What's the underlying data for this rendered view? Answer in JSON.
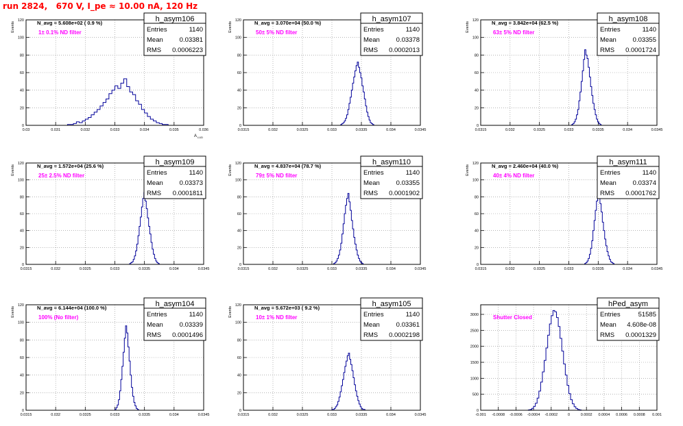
{
  "page": {
    "title": "run 2824,   670 V, I_pe ≈ 10.00 nA, 120 Hz"
  },
  "style": {
    "hist_color": "#000099",
    "note_color": "#ff00ff",
    "title_color": "#ff0000",
    "grid_color": "#888888"
  },
  "stat_labels": {
    "entries": "Entries",
    "mean": "Mean",
    "rms": "RMS"
  },
  "chart_data": [
    {
      "type": "histogram",
      "name": "h_asym106",
      "ylabel": "Events",
      "xlabel": "A_LUD",
      "stats": {
        "entries": "1140",
        "mean": "0.03381",
        "rms": "0.0006223"
      },
      "navg": "N_avg = 5.608e+02 ( 0.9 %)",
      "note": "1± 0.1% ND filter",
      "xlim": [
        0.03,
        0.036
      ],
      "ylim": [
        0,
        120
      ],
      "xticks": [
        0.03,
        0.031,
        0.032,
        0.033,
        0.034,
        0.035,
        0.036
      ],
      "yticks": [
        0,
        20,
        40,
        60,
        80,
        100,
        120
      ],
      "xtick_labels": [
        "0.03",
        "0.031",
        "0.032",
        "0.033",
        "0.034",
        "0.035",
        "0.036"
      ],
      "ytick_labels": [
        "0",
        "20",
        "40",
        "60",
        "80",
        "100",
        "120"
      ],
      "bins": {
        "start": 0.0314,
        "width": 0.0001,
        "counts": [
          1,
          1,
          2,
          4,
          3,
          5,
          7,
          9,
          12,
          15,
          18,
          22,
          26,
          30,
          36,
          40,
          45,
          42,
          48,
          53,
          44,
          38,
          35,
          28,
          24,
          18,
          14,
          10,
          7,
          5,
          3,
          2,
          1,
          1
        ]
      }
    },
    {
      "type": "histogram",
      "name": "h_asym107",
      "ylabel": "Events",
      "xlabel": "",
      "stats": {
        "entries": "1140",
        "mean": "0.03378",
        "rms": "0.0002013"
      },
      "navg": "N_avg = 3.070e+04 (50.0 %)",
      "note": "50± 5% ND filter",
      "xlim": [
        0.0315,
        0.0345
      ],
      "ylim": [
        0,
        120
      ],
      "xticks": [
        0.0315,
        0.032,
        0.0325,
        0.033,
        0.0335,
        0.034,
        0.0345
      ],
      "yticks": [
        0,
        20,
        40,
        60,
        80,
        100,
        120
      ],
      "xtick_labels": [
        "0.0315",
        "0.032",
        "0.0325",
        "0.033",
        "0.0335",
        "0.034",
        "0.0345"
      ],
      "ytick_labels": [
        "0",
        "20",
        "40",
        "60",
        "80",
        "100",
        "120"
      ],
      "bins": {
        "start": 0.03315,
        "width": 2e-05,
        "counts": [
          1,
          2,
          3,
          5,
          8,
          12,
          18,
          25,
          32,
          40,
          48,
          55,
          62,
          68,
          72,
          66,
          60,
          54,
          45,
          38,
          30,
          22,
          15,
          10,
          6,
          3,
          2,
          1
        ]
      }
    },
    {
      "type": "histogram",
      "name": "h_asym108",
      "ylabel": "Events",
      "xlabel": "",
      "stats": {
        "entries": "1140",
        "mean": "0.03355",
        "rms": "0.0001724"
      },
      "navg": "N_avg = 3.842e+04 (62.5 %)",
      "note": "63± 5% ND filter",
      "xlim": [
        0.0315,
        0.0345
      ],
      "ylim": [
        0,
        120
      ],
      "xticks": [
        0.0315,
        0.032,
        0.0325,
        0.033,
        0.0335,
        0.034,
        0.0345
      ],
      "yticks": [
        0,
        20,
        40,
        60,
        80,
        100,
        120
      ],
      "xtick_labels": [
        "0.0315",
        "0.032",
        "0.0325",
        "0.033",
        "0.0335",
        "0.034",
        "0.0345"
      ],
      "ytick_labels": [
        "0",
        "20",
        "40",
        "60",
        "80",
        "100",
        "120"
      ],
      "bins": {
        "start": 0.03305,
        "width": 2e-05,
        "counts": [
          1,
          2,
          4,
          7,
          12,
          18,
          28,
          38,
          50,
          62,
          75,
          86,
          80,
          76,
          66,
          55,
          44,
          34,
          25,
          18,
          12,
          7,
          4,
          2,
          1
        ]
      }
    },
    {
      "type": "histogram",
      "name": "h_asym109",
      "ylabel": "Events",
      "xlabel": "",
      "stats": {
        "entries": "1140",
        "mean": "0.03373",
        "rms": "0.0001811"
      },
      "navg": "N_avg = 1.572e+04 (25.6 %)",
      "note": "25± 2.5% ND filter",
      "xlim": [
        0.0315,
        0.0345
      ],
      "ylim": [
        0,
        120
      ],
      "xticks": [
        0.0315,
        0.032,
        0.0325,
        0.033,
        0.0335,
        0.034,
        0.0345
      ],
      "yticks": [
        0,
        20,
        40,
        60,
        80,
        100,
        120
      ],
      "xtick_labels": [
        "0.0315",
        "0.032",
        "0.0325",
        "0.033",
        "0.0335",
        "0.034",
        "0.0345"
      ],
      "ytick_labels": [
        "0",
        "20",
        "40",
        "60",
        "80",
        "100",
        "120"
      ],
      "bins": {
        "start": 0.03325,
        "width": 2e-05,
        "counts": [
          1,
          2,
          3,
          6,
          10,
          16,
          24,
          34,
          45,
          56,
          68,
          78,
          85,
          75,
          66,
          55,
          45,
          36,
          26,
          18,
          12,
          7,
          4,
          2,
          1
        ]
      }
    },
    {
      "type": "histogram",
      "name": "h_asym110",
      "ylabel": "Events",
      "xlabel": "",
      "stats": {
        "entries": "1140",
        "mean": "0.03355",
        "rms": "0.0001902"
      },
      "navg": "N_avg = 4.837e+04 (78.7 %)",
      "note": "79± 5% ND filter",
      "xlim": [
        0.0315,
        0.0345
      ],
      "ylim": [
        0,
        120
      ],
      "xticks": [
        0.0315,
        0.032,
        0.0325,
        0.033,
        0.0335,
        0.034,
        0.0345
      ],
      "yticks": [
        0,
        20,
        40,
        60,
        80,
        100,
        120
      ],
      "xtick_labels": [
        "0.0315",
        "0.032",
        "0.0325",
        "0.033",
        "0.0335",
        "0.034",
        "0.0345"
      ],
      "ytick_labels": [
        "0",
        "20",
        "40",
        "60",
        "80",
        "100",
        "120"
      ],
      "bins": {
        "start": 0.03303,
        "width": 2e-05,
        "counts": [
          1,
          2,
          4,
          7,
          11,
          17,
          25,
          36,
          48,
          60,
          70,
          78,
          84,
          74,
          64,
          52,
          42,
          32,
          24,
          17,
          11,
          7,
          4,
          2,
          1
        ]
      }
    },
    {
      "type": "histogram",
      "name": "h_asym111",
      "ylabel": "Events",
      "xlabel": "",
      "stats": {
        "entries": "1140",
        "mean": "0.03374",
        "rms": "0.0001762"
      },
      "navg": "N_avg = 2.460e+04 (40.0 %)",
      "note": "40± 4% ND filter",
      "xlim": [
        0.0315,
        0.0345
      ],
      "ylim": [
        0,
        120
      ],
      "xticks": [
        0.0315,
        0.032,
        0.0325,
        0.033,
        0.0335,
        0.034,
        0.0345
      ],
      "yticks": [
        0,
        20,
        40,
        60,
        80,
        100,
        120
      ],
      "xtick_labels": [
        "0.0315",
        "0.032",
        "0.0325",
        "0.033",
        "0.0335",
        "0.034",
        "0.0345"
      ],
      "ytick_labels": [
        "0",
        "20",
        "40",
        "60",
        "80",
        "100",
        "120"
      ],
      "bins": {
        "start": 0.03327,
        "width": 2e-05,
        "counts": [
          1,
          2,
          4,
          7,
          12,
          19,
          28,
          40,
          52,
          64,
          75,
          86,
          80,
          72,
          62,
          50,
          40,
          30,
          22,
          15,
          10,
          6,
          3,
          2,
          1
        ]
      }
    },
    {
      "type": "histogram",
      "name": "h_asym104",
      "ylabel": "Events",
      "xlabel": "",
      "stats": {
        "entries": "1140",
        "mean": "0.03339",
        "rms": "0.0001496"
      },
      "navg": "N_avg = 6.144e+04 (100.0 %)",
      "note": "100% (No filter)",
      "xlim": [
        0.0315,
        0.0345
      ],
      "ylim": [
        0,
        120
      ],
      "xticks": [
        0.0315,
        0.032,
        0.0325,
        0.033,
        0.0335,
        0.034,
        0.0345
      ],
      "yticks": [
        0,
        20,
        40,
        60,
        80,
        100,
        120
      ],
      "xtick_labels": [
        "0.0315",
        "0.032",
        "0.0325",
        "0.033",
        "0.0335",
        "0.034",
        "0.0345"
      ],
      "ytick_labels": [
        "0",
        "20",
        "40",
        "60",
        "80",
        "100",
        "120"
      ],
      "bins": {
        "start": 0.033,
        "width": 2e-05,
        "counts": [
          1,
          3,
          6,
          12,
          22,
          35,
          50,
          66,
          82,
          96,
          88,
          72,
          56,
          40,
          26,
          16,
          9,
          5,
          2,
          1
        ]
      }
    },
    {
      "type": "histogram",
      "name": "h_asym105",
      "ylabel": "Events",
      "xlabel": "",
      "stats": {
        "entries": "1140",
        "mean": "0.03361",
        "rms": "0.0002198"
      },
      "navg": "N_avg = 5.672e+03 ( 9.2 %)",
      "note": "10± 1% ND filter",
      "xlim": [
        0.0315,
        0.0345
      ],
      "ylim": [
        0,
        120
      ],
      "xticks": [
        0.0315,
        0.032,
        0.0325,
        0.033,
        0.0335,
        0.034,
        0.0345
      ],
      "yticks": [
        0,
        20,
        40,
        60,
        80,
        100,
        120
      ],
      "xtick_labels": [
        "0.0315",
        "0.032",
        "0.0325",
        "0.033",
        "0.0335",
        "0.034",
        "0.0345"
      ],
      "ytick_labels": [
        "0",
        "20",
        "40",
        "60",
        "80",
        "100",
        "120"
      ],
      "bins": {
        "start": 0.033,
        "width": 2e-05,
        "counts": [
          1,
          1,
          2,
          4,
          6,
          10,
          15,
          21,
          28,
          35,
          43,
          50,
          56,
          62,
          65,
          58,
          52,
          45,
          37,
          29,
          22,
          16,
          11,
          7,
          4,
          2,
          1,
          1
        ]
      }
    },
    {
      "type": "histogram",
      "name": "hPed_asym",
      "ylabel": "",
      "xlabel": "",
      "stats": {
        "entries": "51585",
        "mean": "4.608e-08",
        "rms": "0.0001329"
      },
      "navg": "",
      "note": "Shutter Closed",
      "xlim": [
        -0.001,
        0.001
      ],
      "ylim": [
        0,
        3300
      ],
      "xticks": [
        -0.001,
        -0.0008,
        -0.0006,
        -0.0004,
        -0.0002,
        0,
        0.0002,
        0.0004,
        0.0006,
        0.0008,
        0.001
      ],
      "yticks": [
        0,
        500,
        1000,
        1500,
        2000,
        2500,
        3000
      ],
      "xtick_labels": [
        "-0.001",
        "-0.0008",
        "-0.0006",
        "-0.0004",
        "-0.0002",
        "0",
        "0.0002",
        "0.0004",
        "0.0006",
        "0.0008",
        "0.001"
      ],
      "ytick_labels": [
        "0",
        "500",
        "1000",
        "1500",
        "2000",
        "2500",
        "3000"
      ],
      "bins": {
        "start": -0.00046,
        "width": 2e-05,
        "counts": [
          10,
          25,
          60,
          120,
          220,
          380,
          600,
          880,
          1200,
          1560,
          1950,
          2350,
          2700,
          2960,
          3120,
          3080,
          2900,
          2620,
          2250,
          1850,
          1450,
          1100,
          780,
          520,
          330,
          200,
          110,
          55,
          25,
          10
        ]
      }
    }
  ]
}
